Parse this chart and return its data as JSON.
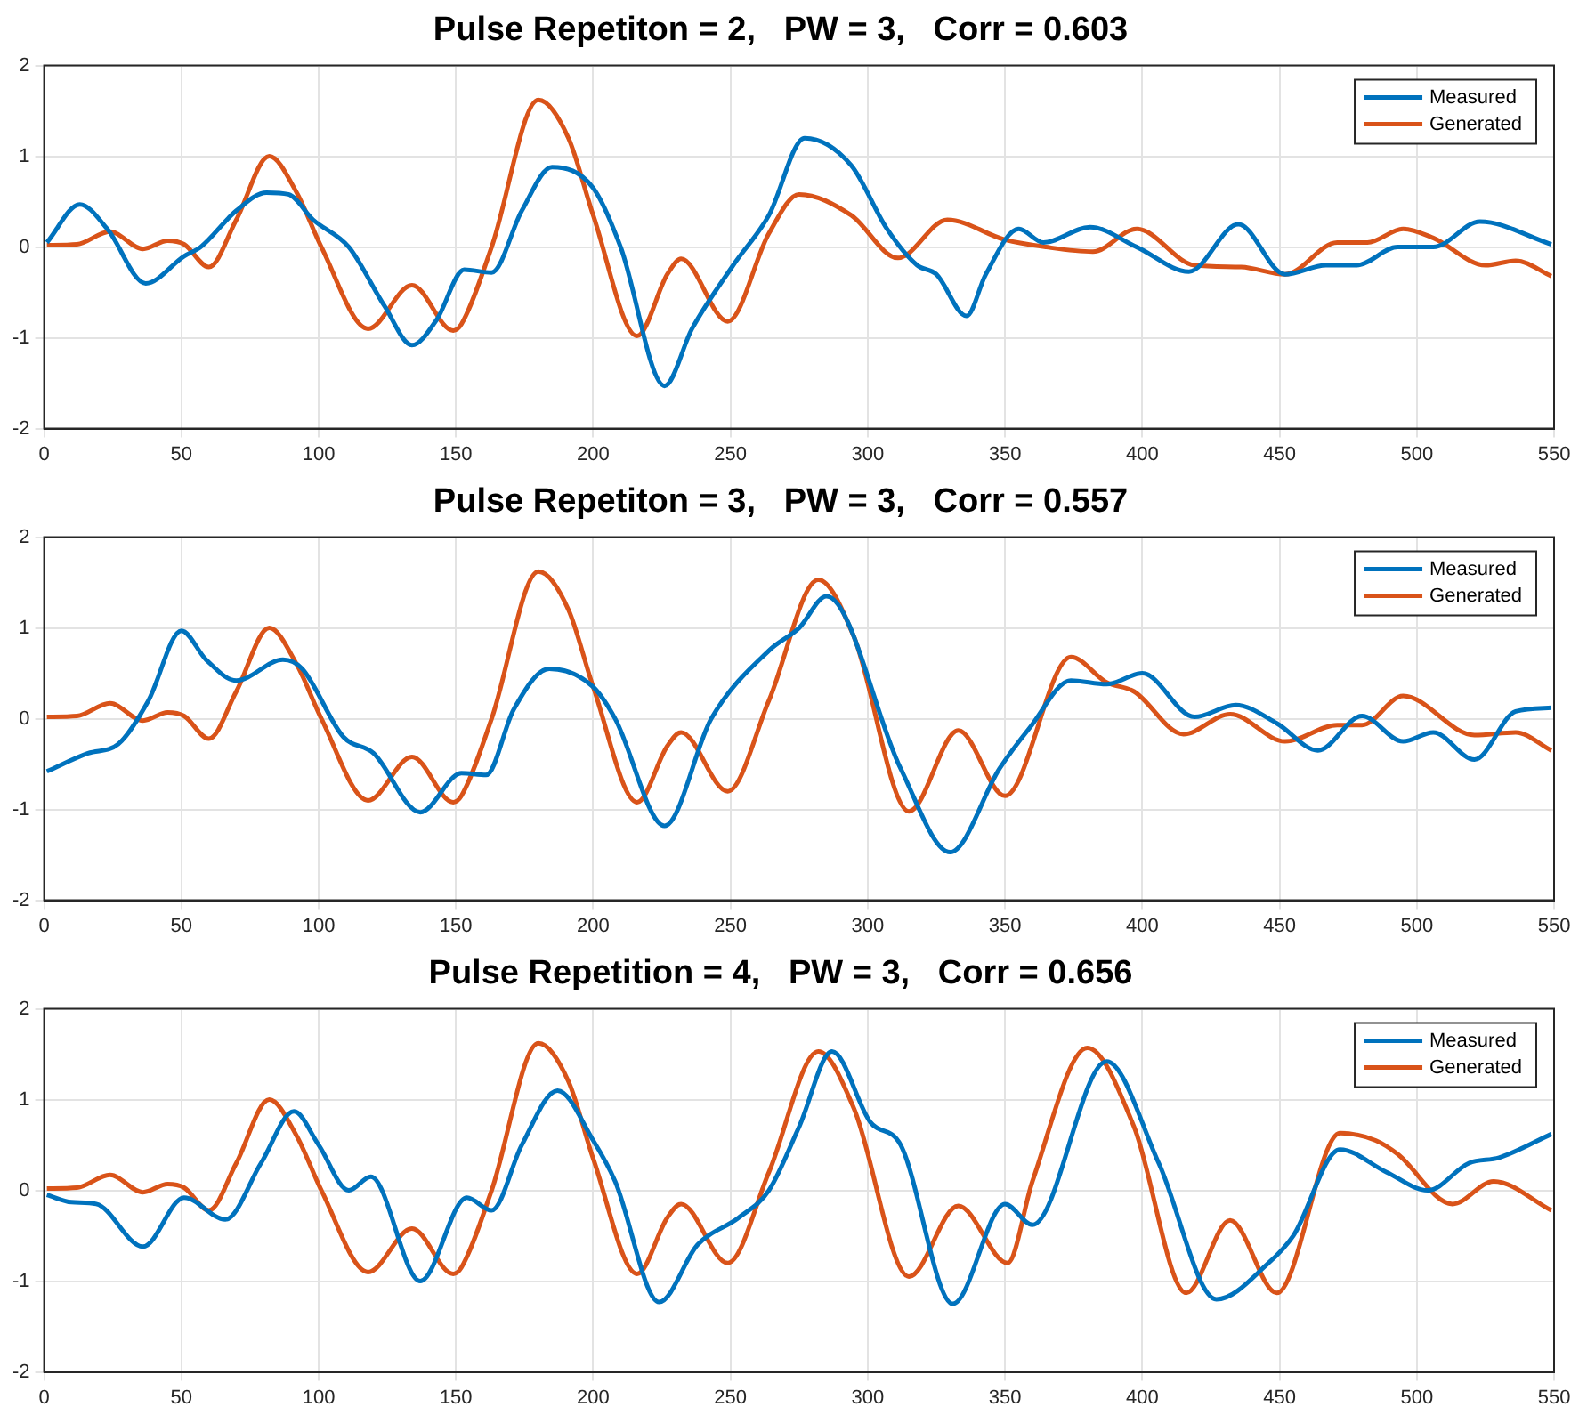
{
  "chart_data": [
    {
      "type": "line",
      "title": "Pulse Repetiton = 2,   PW = 3,   Corr = 0.603",
      "xlim": [
        0,
        550
      ],
      "xticks": [
        0,
        50,
        100,
        150,
        200,
        250,
        300,
        350,
        400,
        450,
        500,
        550
      ],
      "ylim": [
        -2,
        2
      ],
      "yticks": [
        -2,
        -1,
        0,
        1,
        2
      ],
      "grid": true,
      "legend": "top right",
      "line_style": "solid",
      "series": [
        {
          "name": "Measured",
          "color": "#0072bd",
          "x": [
            1,
            13,
            23,
            37,
            51,
            57,
            70,
            81,
            89,
            98,
            111,
            124,
            134,
            143,
            153,
            163,
            174,
            185,
            200,
            210,
            226,
            236,
            251,
            264,
            277,
            294,
            307,
            318,
            325,
            336,
            343,
            355,
            364,
            381,
            398,
            417,
            435,
            452,
            467,
            478,
            493,
            506,
            523,
            549
          ],
          "values": [
            0.05,
            0.47,
            0.2,
            -0.4,
            -0.1,
            0,
            0.4,
            0.6,
            0.58,
            0.3,
            0,
            -0.65,
            -1.08,
            -0.8,
            -0.25,
            -0.28,
            0.4,
            0.88,
            0.65,
            0,
            -1.53,
            -0.9,
            -0.2,
            0.35,
            1.2,
            0.9,
            0.2,
            -0.2,
            -0.3,
            -0.76,
            -0.3,
            0.2,
            0.05,
            0.22,
            0,
            -0.27,
            0.25,
            -0.3,
            -0.2,
            -0.2,
            0,
            0,
            0.28,
            0.03
          ]
        },
        {
          "name": "Generated",
          "color": "#d95319",
          "x": [
            1,
            12,
            24,
            36,
            45,
            51,
            60,
            70,
            82,
            92,
            101,
            118,
            134,
            149,
            152,
            163,
            180,
            191,
            200,
            216,
            227,
            232,
            249,
            264,
            275,
            294,
            311,
            329,
            350,
            365,
            382,
            398,
            419,
            436,
            452,
            471,
            482,
            495,
            506,
            525,
            536,
            549
          ],
          "values": [
            0.02,
            0.03,
            0.17,
            -0.02,
            0.07,
            0.03,
            -0.22,
            0.3,
            1,
            0.6,
            0,
            -0.9,
            -0.42,
            -0.92,
            -0.85,
            0,
            1.62,
            1.2,
            0.35,
            -0.98,
            -0.3,
            -0.13,
            -0.82,
            0.15,
            0.58,
            0.35,
            -0.12,
            0.3,
            0.08,
            0,
            -0.05,
            0.2,
            -0.2,
            -0.22,
            -0.3,
            0.05,
            0.05,
            0.2,
            0.1,
            -0.2,
            -0.15,
            -0.32
          ]
        }
      ]
    },
    {
      "type": "line",
      "title": "Pulse Repetiton = 3,   PW = 3,   Corr = 0.557",
      "xlim": [
        0,
        550
      ],
      "xticks": [
        0,
        50,
        100,
        150,
        200,
        250,
        300,
        350,
        400,
        450,
        500,
        550
      ],
      "ylim": [
        -2,
        2
      ],
      "yticks": [
        -2,
        -1,
        0,
        1,
        2
      ],
      "grid": true,
      "legend": "top right",
      "line_style": "solid",
      "series": [
        {
          "name": "Measured",
          "color": "#0072bd",
          "x": [
            1,
            16,
            27,
            38,
            50,
            59,
            70,
            87,
            94,
            109,
            120,
            137,
            152,
            161,
            171,
            184,
            200,
            208,
            226,
            243,
            264,
            275,
            285,
            312,
            330,
            348,
            359,
            374,
            387,
            400,
            419,
            434,
            449,
            464,
            480,
            495,
            506,
            521,
            536,
            549
          ],
          "values": [
            -0.58,
            -0.38,
            -0.28,
            0.2,
            0.97,
            0.65,
            0.42,
            0.65,
            0.55,
            -0.2,
            -0.38,
            -1.03,
            -0.6,
            -0.62,
            0.1,
            0.55,
            0.35,
            0,
            -1.18,
            0,
            0.75,
            1.0,
            1.35,
            -0.55,
            -1.47,
            -0.55,
            -0.1,
            0.42,
            0.38,
            0.5,
            0.02,
            0.15,
            -0.05,
            -0.35,
            0.03,
            -0.25,
            -0.15,
            -0.45,
            0.08,
            0.12
          ]
        },
        {
          "name": "Generated",
          "color": "#d95319",
          "x": [
            1,
            12,
            24,
            36,
            45,
            51,
            60,
            70,
            82,
            92,
            101,
            118,
            134,
            149,
            152,
            163,
            180,
            191,
            200,
            216,
            227,
            232,
            249,
            264,
            282,
            295,
            315,
            333,
            350,
            374,
            387,
            397,
            415,
            432,
            452,
            471,
            480,
            495,
            521,
            536,
            549
          ],
          "values": [
            0.02,
            0.03,
            0.17,
            -0.02,
            0.07,
            0.03,
            -0.22,
            0.3,
            1,
            0.6,
            0,
            -0.9,
            -0.42,
            -0.92,
            -0.85,
            0,
            1.62,
            1.2,
            0.35,
            -0.92,
            -0.3,
            -0.15,
            -0.8,
            0.2,
            1.53,
            0.9,
            -1.02,
            -0.13,
            -0.85,
            0.68,
            0.4,
            0.3,
            -0.17,
            0.05,
            -0.25,
            -0.07,
            -0.07,
            0.25,
            -0.18,
            -0.15,
            -0.35
          ]
        }
      ]
    },
    {
      "type": "line",
      "title": "Pulse Repetition = 4,   PW = 3,   Corr = 0.656",
      "xlim": [
        0,
        550
      ],
      "xticks": [
        0,
        50,
        100,
        150,
        200,
        250,
        300,
        350,
        400,
        450,
        500,
        550
      ],
      "ylim": [
        -2,
        2
      ],
      "yticks": [
        -2,
        -1,
        0,
        1,
        2
      ],
      "grid": true,
      "legend": "top right",
      "line_style": "solid",
      "series": [
        {
          "name": "Measured",
          "color": "#0072bd",
          "x": [
            1,
            10,
            19,
            36,
            51,
            66,
            79,
            91,
            100,
            111,
            119,
            137,
            154,
            163,
            174,
            187,
            200,
            208,
            224,
            238,
            253,
            264,
            275,
            287,
            301,
            312,
            331,
            350,
            360,
            387,
            406,
            427,
            446,
            455,
            472,
            489,
            504,
            519,
            530,
            549
          ],
          "values": [
            -0.05,
            -0.13,
            -0.15,
            -0.62,
            -0.08,
            -0.32,
            0.3,
            0.87,
            0.5,
            0,
            0.15,
            -1,
            -0.08,
            -0.22,
            0.5,
            1.1,
            0.55,
            0.1,
            -1.23,
            -0.6,
            -0.3,
            0,
            0.7,
            1.53,
            0.75,
            0.5,
            -1.25,
            -0.15,
            -0.38,
            1.42,
            0.3,
            -1.2,
            -0.8,
            -0.5,
            0.45,
            0.2,
            0,
            0.3,
            0.36,
            0.62
          ]
        },
        {
          "name": "Generated",
          "color": "#d95319",
          "x": [
            1,
            12,
            24,
            36,
            45,
            51,
            60,
            70,
            82,
            92,
            101,
            118,
            134,
            149,
            152,
            163,
            180,
            191,
            200,
            216,
            227,
            232,
            249,
            264,
            282,
            295,
            315,
            333,
            351,
            360,
            380,
            397,
            416,
            432,
            449,
            472,
            485,
            493,
            513,
            528,
            549
          ],
          "values": [
            0.02,
            0.03,
            0.17,
            -0.02,
            0.07,
            0.03,
            -0.22,
            0.3,
            1,
            0.6,
            0,
            -0.9,
            -0.42,
            -0.92,
            -0.85,
            0,
            1.62,
            1.2,
            0.35,
            -0.92,
            -0.3,
            -0.15,
            -0.8,
            0.2,
            1.53,
            0.9,
            -0.95,
            -0.17,
            -0.8,
            0.1,
            1.57,
            0.7,
            -1.13,
            -0.33,
            -1.13,
            0.63,
            0.55,
            0.4,
            -0.15,
            0.1,
            -0.22
          ]
        }
      ]
    }
  ]
}
